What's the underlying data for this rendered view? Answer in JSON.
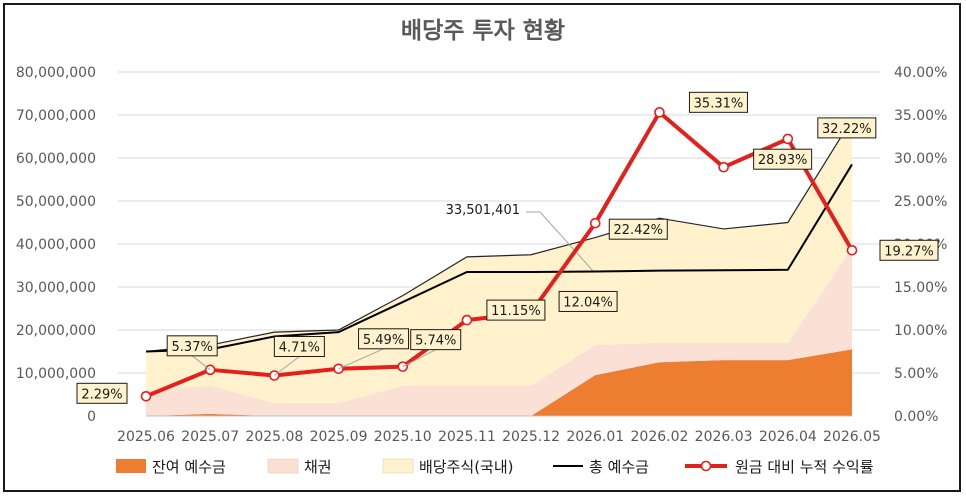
{
  "chart_data": {
    "type": "area",
    "title": "배당주 투자 현황",
    "categories": [
      "2025.06",
      "2025.07",
      "2025.08",
      "2025.09",
      "2025.10",
      "2025.11",
      "2025.12",
      "2026.01",
      "2026.02",
      "2026.03",
      "2026.04",
      "2026.05"
    ],
    "y_left": {
      "min": 0,
      "max": 80000000,
      "ticks": [
        "0",
        "10,000,000",
        "20,000,000",
        "30,000,000",
        "40,000,000",
        "50,000,000",
        "60,000,000",
        "70,000,000",
        "80,000,000"
      ]
    },
    "y_right": {
      "min": 0,
      "max": 0.4,
      "ticks": [
        "0.00%",
        "5.00%",
        "10.00%",
        "15.00%",
        "20.00%",
        "25.00%",
        "30.00%",
        "35.00%",
        "40.00%"
      ]
    },
    "series": [
      {
        "name": "잔여 예수금",
        "type": "stacked-area",
        "color": "#ED7D31",
        "values": [
          0,
          500000,
          0,
          0,
          0,
          0,
          0,
          9500000,
          12500000,
          13000000,
          13000000,
          15500000
        ]
      },
      {
        "name": "채권",
        "type": "stacked-area",
        "color": "#FBE0D5",
        "values": [
          6000000,
          6500000,
          3000000,
          3000000,
          7000000,
          7000000,
          7000000,
          7000000,
          4500000,
          4000000,
          4000000,
          23500000
        ]
      },
      {
        "name": "배당주식(국내)",
        "type": "stacked-area",
        "color": "#FFF2CC",
        "values": [
          9000000,
          9500000,
          16500000,
          17000000,
          21000000,
          30000000,
          30500000,
          25000000,
          29000000,
          26500000,
          28000000,
          30000000
        ]
      },
      {
        "name": "총 예수금",
        "type": "line",
        "color": "#000000",
        "values": [
          15000000,
          15500000,
          18500000,
          19500000,
          26500000,
          33500000,
          33500000,
          33600000,
          33800000,
          33900000,
          34000000,
          58500000
        ]
      },
      {
        "name": "원금 대비 누적 수익률",
        "type": "line-right-axis",
        "color": "#E3201B",
        "values": [
          0.0229,
          0.0537,
          0.0471,
          0.0549,
          0.0574,
          0.1115,
          0.1204,
          0.2242,
          0.3531,
          0.2893,
          0.3222,
          0.1927
        ],
        "labels": [
          "2.29%",
          "5.37%",
          "4.71%",
          "5.49%",
          "5.74%",
          "11.15%",
          "12.04%",
          "22.42%",
          "35.31%",
          "28.93%",
          "32.22%",
          "19.27%"
        ]
      }
    ],
    "annotation": {
      "text": "33,501,401",
      "index": 5
    },
    "legend_position": "bottom"
  }
}
